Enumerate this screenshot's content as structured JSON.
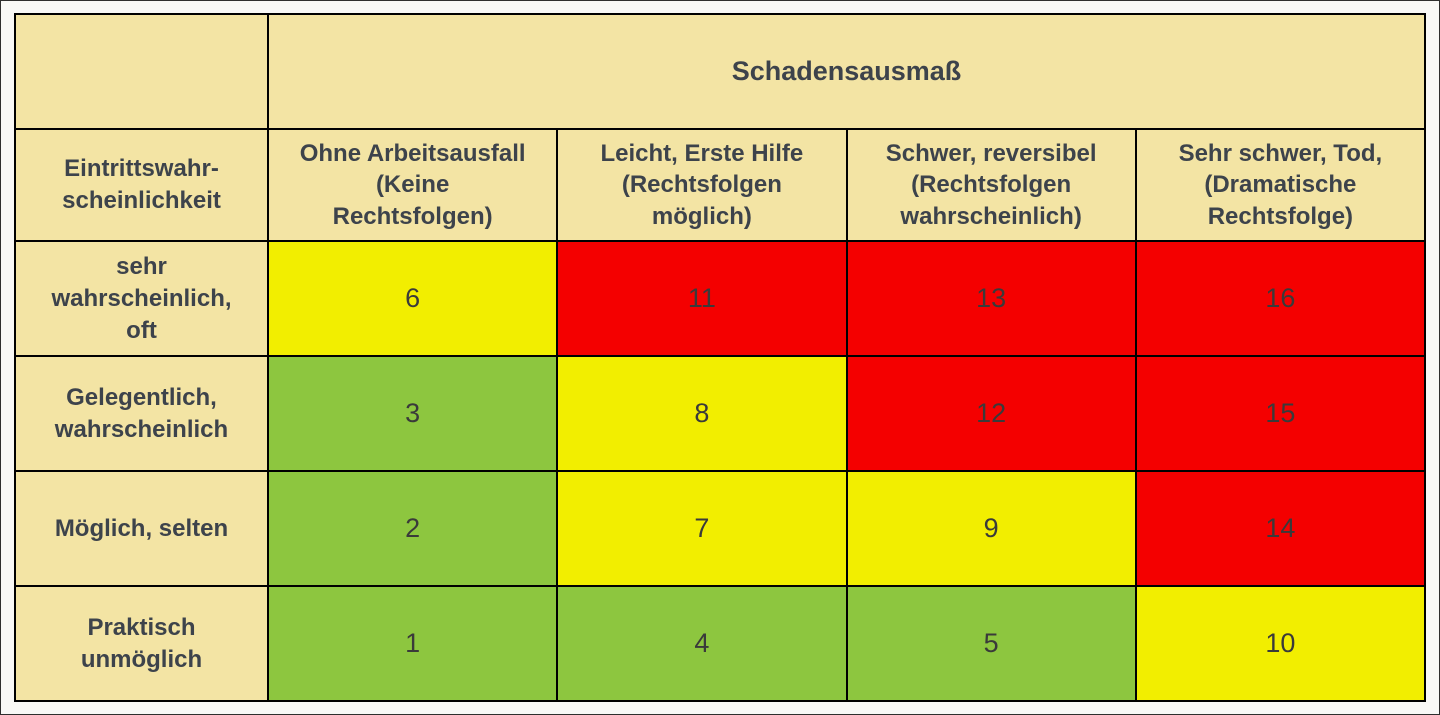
{
  "chart_data": {
    "type": "heatmap",
    "title": "Schadensausmaß",
    "row_axis_label": "Eintrittswahr-\nscheinlichkeit",
    "columns": [
      "Ohne Arbeitsausfall\n(Keine\nRechtsfolgen)",
      "Leicht, Erste Hilfe\n(Rechtsfolgen\nmöglich)",
      "Schwer, reversibel\n(Rechtsfolgen\nwahrscheinlich)",
      "Sehr schwer, Tod,\n(Dramatische\nRechtsfolge)"
    ],
    "rows": [
      {
        "label": "sehr\nwahrscheinlich,\noft",
        "values": [
          6,
          11,
          13,
          16
        ],
        "levels": [
          "yellow",
          "red",
          "red",
          "red"
        ]
      },
      {
        "label": "Gelegentlich,\nwahrscheinlich",
        "values": [
          3,
          8,
          12,
          15
        ],
        "levels": [
          "green",
          "yellow",
          "red",
          "red"
        ]
      },
      {
        "label": "Möglich, selten",
        "values": [
          2,
          7,
          9,
          14
        ],
        "levels": [
          "green",
          "yellow",
          "yellow",
          "red"
        ]
      },
      {
        "label": "Praktisch\nunmöglich",
        "values": [
          1,
          4,
          5,
          10
        ],
        "levels": [
          "green",
          "green",
          "green",
          "yellow"
        ]
      }
    ],
    "value_range": [
      1,
      16
    ],
    "legend_colors": {
      "green": "#8dc63f",
      "yellow": "#f2ee00",
      "red": "#f40000",
      "header_background": "#f3e4a4",
      "text": "#3d434b"
    },
    "grid": true,
    "legend_position": "none"
  }
}
